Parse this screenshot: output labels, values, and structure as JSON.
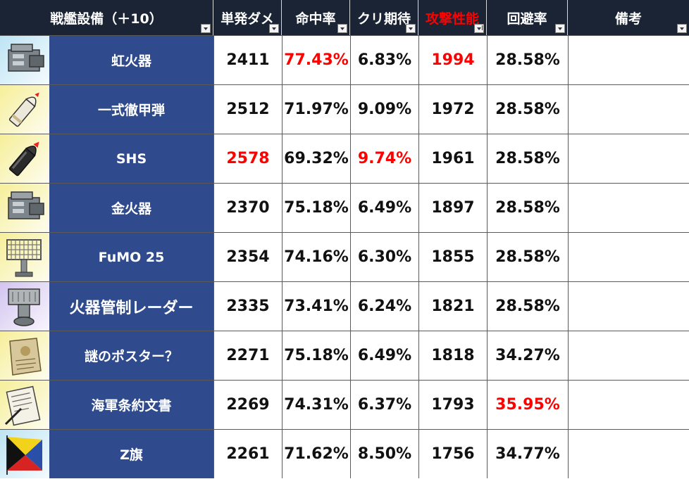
{
  "header": {
    "columns": [
      {
        "label": "戦艦設備（＋10）",
        "color": "#ffffff"
      },
      {
        "label": "単発ダメ",
        "color": "#ffffff"
      },
      {
        "label": "命中率",
        "color": "#ffffff"
      },
      {
        "label": "クリ期待",
        "color": "#ffffff"
      },
      {
        "label": "攻撃性能",
        "color": "#ff0000"
      },
      {
        "label": "回避率",
        "color": "#ffffff"
      },
      {
        "label": "備考",
        "color": "#ffffff"
      }
    ]
  },
  "colors": {
    "highlight": "#ff0000",
    "name_bg": "#2f4b8e",
    "header_bg": "#1a2434"
  },
  "rows": [
    {
      "name": "虹火器",
      "icon": "fire-control-gear-icon",
      "rarity_color": "#bde4f4",
      "dmg": "2411",
      "hit": "77.43%",
      "crit": "6.83%",
      "atk": "1994",
      "eva": "28.58%",
      "note": "",
      "hi": [
        "hit",
        "atk"
      ]
    },
    {
      "name": "一式徹甲弾",
      "icon": "ap-shell-icon",
      "rarity_color": "#f6ef9a",
      "dmg": "2512",
      "hit": "71.97%",
      "crit": "9.09%",
      "atk": "1972",
      "eva": "28.58%",
      "note": "",
      "hi": []
    },
    {
      "name": "SHS",
      "icon": "super-heavy-shell-icon",
      "rarity_color": "#f6ef9a",
      "dmg": "2578",
      "hit": "69.32%",
      "crit": "9.74%",
      "atk": "1961",
      "eva": "28.58%",
      "note": "",
      "hi": [
        "dmg",
        "crit"
      ]
    },
    {
      "name": "金火器",
      "icon": "fire-control-gear-icon",
      "rarity_color": "#f6ef9a",
      "dmg": "2370",
      "hit": "75.18%",
      "crit": "6.49%",
      "atk": "1897",
      "eva": "28.58%",
      "note": "",
      "hi": []
    },
    {
      "name": "FuMO 25",
      "icon": "radar-array-icon",
      "rarity_color": "#f6ef9a",
      "dmg": "2354",
      "hit": "74.16%",
      "crit": "6.30%",
      "atk": "1855",
      "eva": "28.58%",
      "note": "",
      "hi": []
    },
    {
      "name": "火器管制レーダー",
      "icon": "fire-control-radar-icon",
      "rarity_color": "#d3c4f0",
      "dmg": "2335",
      "hit": "73.41%",
      "crit": "6.24%",
      "atk": "1821",
      "eva": "28.58%",
      "note": "",
      "hi": []
    },
    {
      "name": "謎のポスター？",
      "icon": "poster-scroll-icon",
      "rarity_color": "#f6ef9a",
      "dmg": "2271",
      "hit": "75.18%",
      "crit": "6.49%",
      "atk": "1818",
      "eva": "34.27%",
      "note": "",
      "hi": []
    },
    {
      "name": "海軍条約文書",
      "icon": "treaty-document-icon",
      "rarity_color": "#f6ef9a",
      "dmg": "2269",
      "hit": "74.31%",
      "crit": "6.37%",
      "atk": "1793",
      "eva": "35.95%",
      "note": "",
      "hi": [
        "eva"
      ]
    },
    {
      "name": "Z旗",
      "icon": "z-flag-icon",
      "rarity_color": "#bde4f4",
      "dmg": "2261",
      "hit": "71.62%",
      "crit": "8.50%",
      "atk": "1756",
      "eva": "34.77%",
      "note": "",
      "hi": []
    }
  ]
}
